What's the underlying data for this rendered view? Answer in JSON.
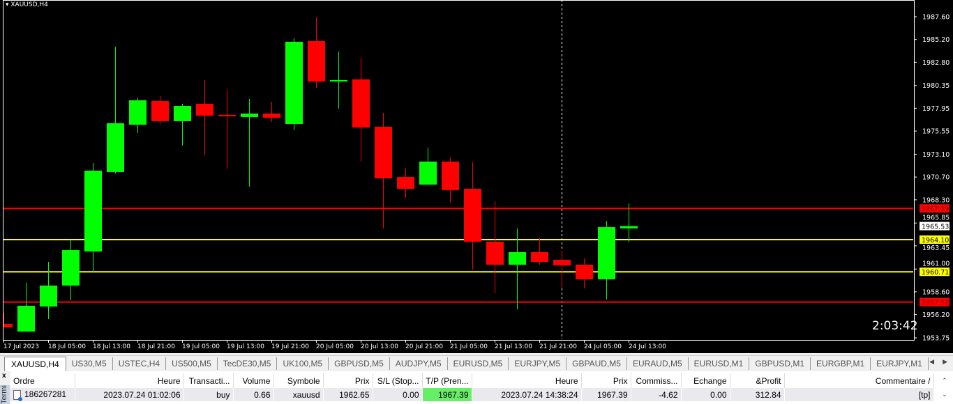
{
  "chart_data": {
    "type": "candlestick",
    "title": "XAUUSD,H4",
    "ylim": [
      1953.75,
      1987.6
    ],
    "y_ticks": [
      "1987.60",
      "1985.20",
      "1982.80",
      "1980.35",
      "1977.95",
      "1975.55",
      "1973.10",
      "1970.70",
      "1968.30",
      "1965.85",
      "1963.45",
      "1961.00",
      "1958.60",
      "1956.20",
      "1953.75"
    ],
    "x_labels": [
      "17 Jul 2023",
      "18 Jul 05:00",
      "18 Jul 13:00",
      "18 Jul 21:00",
      "19 Jul 05:00",
      "19 Jul 13:00",
      "19 Jul 21:00",
      "20 Jul 05:00",
      "20 Jul 13:00",
      "20 Jul 21:00",
      "21 Jul 05:00",
      "21 Jul 13:00",
      "21 Jul 21:00",
      "24 Jul 05:00",
      "24 Jul 13:00"
    ],
    "candles": [
      {
        "o": 1955.22,
        "h": 1956.39,
        "l": 1954.85,
        "c": 1954.85
      },
      {
        "o": 1954.41,
        "h": 1959.55,
        "l": 1954.41,
        "c": 1957.13
      },
      {
        "o": 1957.05,
        "h": 1961.75,
        "l": 1955.73,
        "c": 1959.26
      },
      {
        "o": 1959.26,
        "h": 1964.1,
        "l": 1957.71,
        "c": 1963.0
      },
      {
        "o": 1962.85,
        "h": 1972.18,
        "l": 1960.72,
        "c": 1971.37
      },
      {
        "o": 1971.23,
        "h": 1984.44,
        "l": 1971.08,
        "c": 1976.37
      },
      {
        "o": 1976.22,
        "h": 1979.01,
        "l": 1975.34,
        "c": 1978.79
      },
      {
        "o": 1978.72,
        "h": 1979.23,
        "l": 1976.29,
        "c": 1976.59
      },
      {
        "o": 1976.59,
        "h": 1978.42,
        "l": 1974.02,
        "c": 1978.2
      },
      {
        "o": 1978.42,
        "h": 1980.92,
        "l": 1972.99,
        "c": 1977.17
      },
      {
        "o": 1977.25,
        "h": 1979.89,
        "l": 1971.52,
        "c": 1977.1
      },
      {
        "o": 1977.03,
        "h": 1978.94,
        "l": 1969.68,
        "c": 1977.39
      },
      {
        "o": 1977.39,
        "h": 1978.64,
        "l": 1976.51,
        "c": 1976.95
      },
      {
        "o": 1976.29,
        "h": 1985.32,
        "l": 1975.63,
        "c": 1984.96
      },
      {
        "o": 1985.03,
        "h": 1987.53,
        "l": 1980.11,
        "c": 1980.77
      },
      {
        "o": 1980.77,
        "h": 1983.93,
        "l": 1977.91,
        "c": 1980.92
      },
      {
        "o": 1980.99,
        "h": 1983.27,
        "l": 1972.33,
        "c": 1975.92
      },
      {
        "o": 1976.0,
        "h": 1977.47,
        "l": 1965.28,
        "c": 1970.56
      },
      {
        "o": 1970.71,
        "h": 1971.59,
        "l": 1968.51,
        "c": 1969.46
      },
      {
        "o": 1969.9,
        "h": 1973.8,
        "l": 1969.9,
        "c": 1972.33
      },
      {
        "o": 1972.33,
        "h": 1972.77,
        "l": 1968.0,
        "c": 1969.32
      },
      {
        "o": 1969.46,
        "h": 1972.25,
        "l": 1960.94,
        "c": 1963.88
      },
      {
        "o": 1963.88,
        "h": 1968.14,
        "l": 1958.45,
        "c": 1961.46
      },
      {
        "o": 1961.46,
        "h": 1965.28,
        "l": 1956.76,
        "c": 1962.78
      },
      {
        "o": 1962.78,
        "h": 1964.25,
        "l": 1961.46,
        "c": 1961.75
      },
      {
        "o": 1961.97,
        "h": 1962.93,
        "l": 1959.04,
        "c": 1961.39
      },
      {
        "o": 1961.46,
        "h": 1962.12,
        "l": 1958.96,
        "c": 1959.92
      },
      {
        "o": 1959.92,
        "h": 1966.08,
        "l": 1957.79,
        "c": 1965.42
      },
      {
        "o": 1965.28,
        "h": 1967.92,
        "l": 1963.81,
        "c": 1965.53
      }
    ],
    "levels": [
      {
        "price": 1967.39,
        "label": "1967.39",
        "color": "#ff0000"
      },
      {
        "price": 1964.1,
        "label": "1964.10",
        "color": "#ffff00"
      },
      {
        "price": 1960.71,
        "label": "1960.71",
        "color": "#ffff00"
      },
      {
        "price": 1957.52,
        "label": "1957.52",
        "color": "#ff0000"
      }
    ],
    "bid": {
      "price": 1965.53,
      "label": "1965.53"
    },
    "period_separator_index": 25,
    "colors": {
      "bull": "#00ff00",
      "bear": "#ff0000",
      "background": "#000000",
      "axis": "#ffffff"
    },
    "grid": false
  },
  "chart": {
    "title": "XAUUSD,H4",
    "timer": "2:03:42"
  },
  "tabs": [
    "XAUUSD,H4",
    "US30,M5",
    "USTEC,H4",
    "US500,M5",
    "TecDE30,M5",
    "UK100,M5",
    "GBPUSD,M5",
    "AUDJPY,M5",
    "EURUSD,M5",
    "EURJPY,M5",
    "GBPAUD,M5",
    "EURAUD,M5",
    "EURUSD,M1",
    "GBPUSD,M1",
    "EURGBP,M1",
    "EURJPY,M1"
  ],
  "terminal": {
    "side_label": "Terminal",
    "close": "x",
    "columns": [
      "Ordre",
      "Heure",
      "Transacti...",
      "Volume",
      "Symbole",
      "Prix",
      "S/L (Stop...",
      "T/P (Pren...",
      "Heure",
      "Prix",
      "Commiss...",
      "Echange",
      "&Profit",
      "Commentaire  /"
    ],
    "rows": [
      [
        "186267281",
        "2023.07.24 01:02:06",
        "buy",
        "0.66",
        "xauusd",
        "1962.65",
        "0.00",
        "1967.39",
        "2023.07.24 14:38:24",
        "1967.39",
        "-4.62",
        "0.00",
        "312.84",
        "[tp]"
      ]
    ]
  }
}
